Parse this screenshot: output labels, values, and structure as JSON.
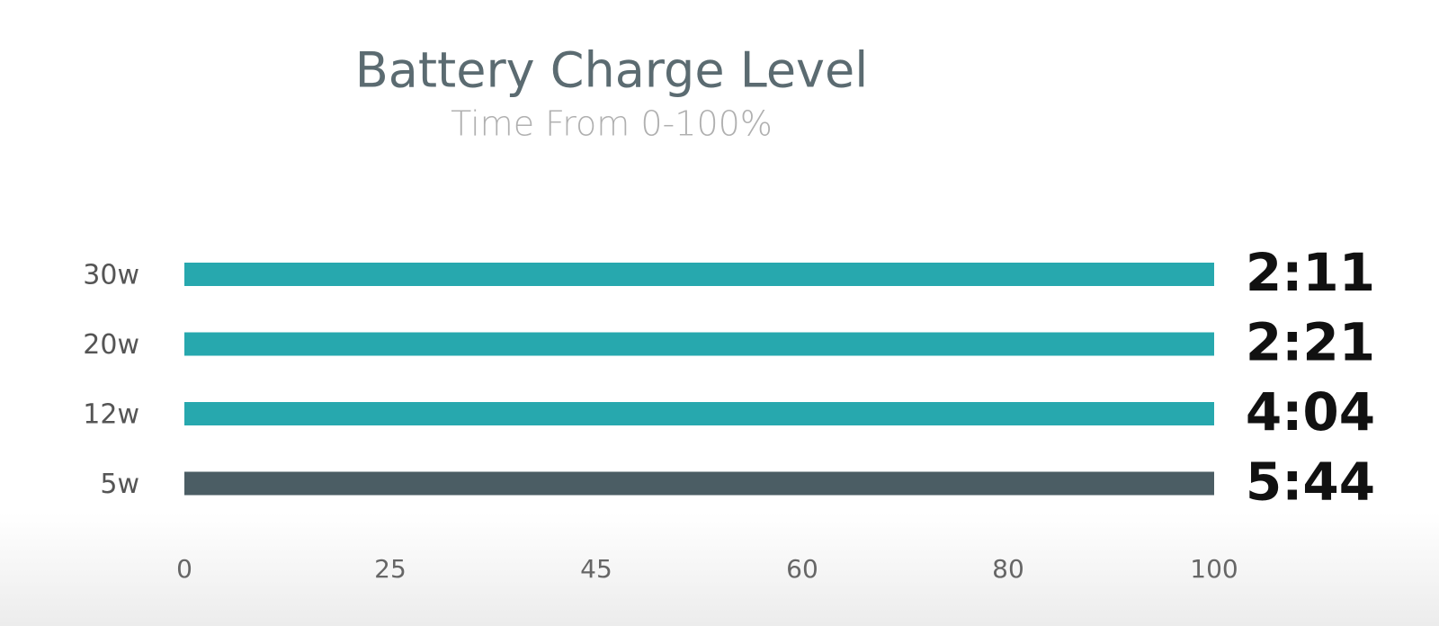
{
  "chart_data": {
    "type": "bar",
    "orientation": "horizontal",
    "title": "Battery Charge Level",
    "subtitle": "Time From 0-100%",
    "categories": [
      "30w",
      "20w",
      "12w",
      "5w"
    ],
    "values": [
      100,
      100,
      100,
      100
    ],
    "colors": [
      "#27a8ae",
      "#27a8ae",
      "#27a8ae",
      "#4b5d64"
    ],
    "time_labels": [
      "2:11",
      "2:21",
      "4:04",
      "5:44"
    ],
    "xlim": [
      0,
      100
    ],
    "xticks": [
      0,
      25,
      45,
      60,
      80,
      100
    ]
  }
}
